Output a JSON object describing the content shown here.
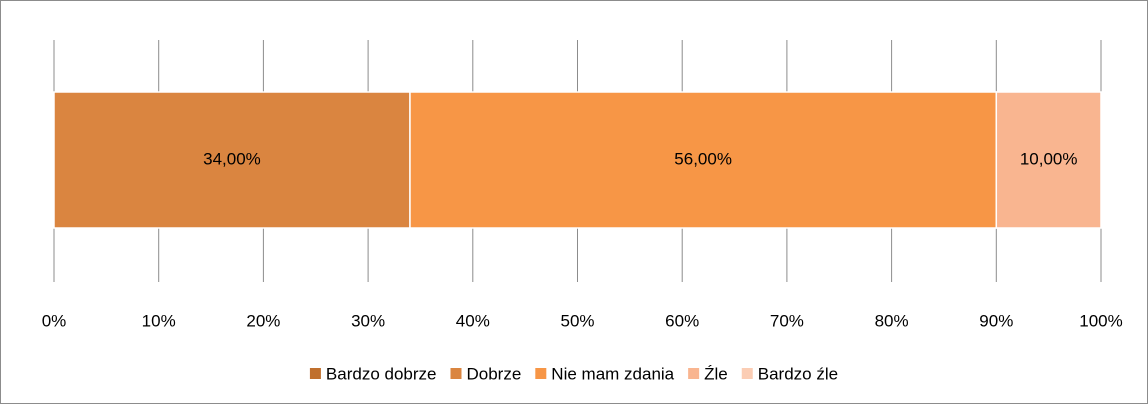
{
  "chart_data": {
    "type": "stacked_barh",
    "series": [
      {
        "name": "Bardzo dobrze",
        "color": "#c0702e",
        "values": [
          0
        ]
      },
      {
        "name": "Dobrze",
        "color": "#da8540",
        "values": [
          34
        ],
        "value_labels": [
          "34,00%"
        ]
      },
      {
        "name": "Nie mam zdania",
        "color": "#f79646",
        "values": [
          56
        ],
        "value_labels": [
          "56,00%"
        ]
      },
      {
        "name": "Źle",
        "color": "#f9b590",
        "values": [
          10
        ],
        "value_labels": [
          "10,00%"
        ]
      },
      {
        "name": "Bardzo źle",
        "color": "#fbcdb4",
        "values": [
          0
        ]
      }
    ],
    "xlim": [
      0,
      100
    ],
    "xticks": [
      {
        "value": 0,
        "label": "0%"
      },
      {
        "value": 10,
        "label": "10%"
      },
      {
        "value": 20,
        "label": "20%"
      },
      {
        "value": 30,
        "label": "30%"
      },
      {
        "value": 40,
        "label": "40%"
      },
      {
        "value": 50,
        "label": "50%"
      },
      {
        "value": 60,
        "label": "60%"
      },
      {
        "value": 70,
        "label": "70%"
      },
      {
        "value": 80,
        "label": "80%"
      },
      {
        "value": 90,
        "label": "90%"
      },
      {
        "value": 100,
        "label": "100%"
      }
    ],
    "grid": true,
    "legend": "bottom"
  }
}
